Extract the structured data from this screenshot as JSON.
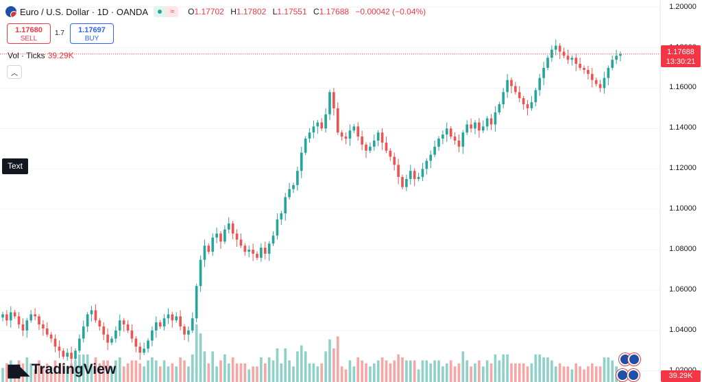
{
  "header": {
    "symbol": "Euro / U.S. Dollar · 1D · OANDA",
    "open_key": "O",
    "open": "1.17702",
    "high_key": "H",
    "high": "1.17802",
    "low_key": "L",
    "low": "1.17551",
    "close_key": "C",
    "close": "1.17688",
    "change": "−0.00042 (−0.04%)"
  },
  "trade": {
    "sell_price": "1.17680",
    "sell_label": "SELL",
    "spread": "1.7",
    "buy_price": "1.17697",
    "buy_label": "BUY"
  },
  "volume_indicator": {
    "label": "Vol · Ticks",
    "value": "39.29K"
  },
  "tooltip": "Text",
  "last_price": {
    "price": "1.17688",
    "countdown": "13:30:21"
  },
  "volume_last_label": "39.29K",
  "logo_text": "TradingView",
  "colors": {
    "up": "#26a69a",
    "down": "#ef5350",
    "up_vol": "#8fd1c9",
    "down_vol": "#f5a7a5",
    "accent": "#f23645"
  },
  "chart_data": {
    "type": "candlestick",
    "y_axis_ticks": [
      "1.20000",
      "1.18000",
      "1.16000",
      "1.14000",
      "1.12000",
      "1.10000",
      "1.08000",
      "1.06000",
      "1.04000",
      "1.02000"
    ],
    "ylim": [
      1.0145,
      1.2036
    ],
    "grid": true,
    "close_path": [
      1.048,
      1.045,
      1.049,
      1.047,
      1.043,
      1.04,
      1.045,
      1.048,
      1.047,
      1.043,
      1.041,
      1.038,
      1.036,
      1.032,
      1.03,
      1.027,
      1.029,
      1.026,
      1.03,
      1.036,
      1.042,
      1.048,
      1.05,
      1.045,
      1.042,
      1.038,
      1.034,
      1.036,
      1.04,
      1.045,
      1.043,
      1.04,
      1.036,
      1.032,
      1.029,
      1.031,
      1.035,
      1.04,
      1.044,
      1.042,
      1.046,
      1.048,
      1.045,
      1.047,
      1.042,
      1.038,
      1.04,
      1.046,
      1.062,
      1.075,
      1.082,
      1.079,
      1.086,
      1.088,
      1.084,
      1.09,
      1.093,
      1.088,
      1.085,
      1.082,
      1.079,
      1.08,
      1.078,
      1.076,
      1.081,
      1.078,
      1.083,
      1.087,
      1.095,
      1.098,
      1.106,
      1.11,
      1.112,
      1.119,
      1.128,
      1.135,
      1.138,
      1.141,
      1.143,
      1.14,
      1.147,
      1.158,
      1.15,
      1.138,
      1.136,
      1.135,
      1.139,
      1.141,
      1.136,
      1.132,
      1.129,
      1.131,
      1.134,
      1.138,
      1.133,
      1.129,
      1.126,
      1.122,
      1.116,
      1.111,
      1.115,
      1.119,
      1.115,
      1.116,
      1.12,
      1.124,
      1.127,
      1.131,
      1.135,
      1.137,
      1.14,
      1.136,
      1.134,
      1.131,
      1.138,
      1.142,
      1.14,
      1.143,
      1.139,
      1.141,
      1.145,
      1.142,
      1.148,
      1.152,
      1.158,
      1.164,
      1.161,
      1.158,
      1.155,
      1.152,
      1.15,
      1.153,
      1.159,
      1.165,
      1.17,
      1.175,
      1.179,
      1.181,
      1.178,
      1.176,
      1.174,
      1.175,
      1.172,
      1.17,
      1.169,
      1.167,
      1.164,
      1.162,
      1.16,
      1.165,
      1.17,
      1.174,
      1.176,
      1.1769
    ],
    "volume_max_note": "Volume in ticks; last bar 39.29K"
  },
  "event_markers": [
    "EUR event",
    "EUR event",
    "USD event",
    "USD event"
  ]
}
